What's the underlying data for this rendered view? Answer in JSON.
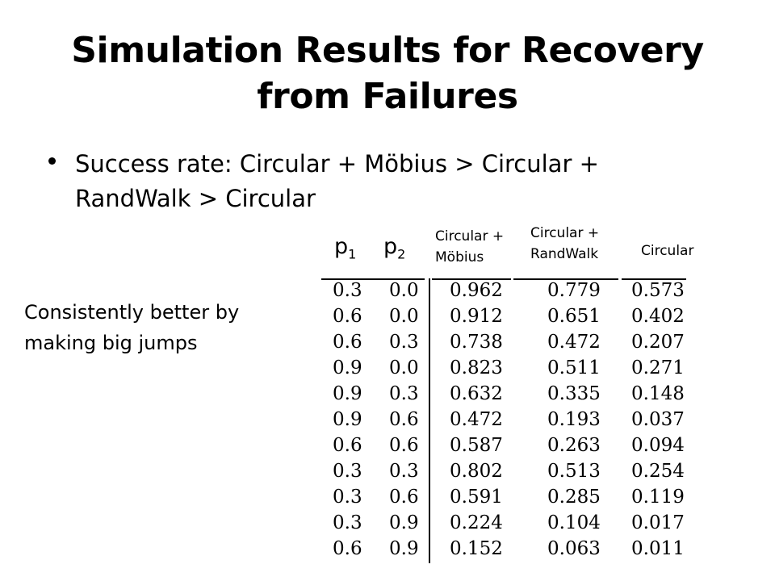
{
  "slide": {
    "title": "Simulation Results for Recovery from Failures",
    "bullet": "Success rate: Circular + Möbius > Circular + RandWalk > Circular",
    "side_note": "Consistently better by making big jumps"
  },
  "table": {
    "headers": {
      "p1": "p",
      "p1_sub": "1",
      "p2": "p",
      "p2_sub": "2",
      "mobius_line1": "Circular +",
      "mobius_line2": "Möbius",
      "randwalk_line1": "Circular +",
      "randwalk_line2": "RandWalk",
      "circular": "Circular"
    },
    "rows": [
      [
        "0.3",
        "0.0",
        "0.962",
        "0.779",
        "0.573"
      ],
      [
        "0.6",
        "0.0",
        "0.912",
        "0.651",
        "0.402"
      ],
      [
        "0.6",
        "0.3",
        "0.738",
        "0.472",
        "0.207"
      ],
      [
        "0.9",
        "0.0",
        "0.823",
        "0.511",
        "0.271"
      ],
      [
        "0.9",
        "0.3",
        "0.632",
        "0.335",
        "0.148"
      ],
      [
        "0.9",
        "0.6",
        "0.472",
        "0.193",
        "0.037"
      ],
      [
        "0.6",
        "0.6",
        "0.587",
        "0.263",
        "0.094"
      ],
      [
        "0.3",
        "0.3",
        "0.802",
        "0.513",
        "0.254"
      ],
      [
        "0.3",
        "0.6",
        "0.591",
        "0.285",
        "0.119"
      ],
      [
        "0.3",
        "0.9",
        "0.224",
        "0.104",
        "0.017"
      ],
      [
        "0.6",
        "0.9",
        "0.152",
        "0.063",
        "0.011"
      ]
    ]
  }
}
